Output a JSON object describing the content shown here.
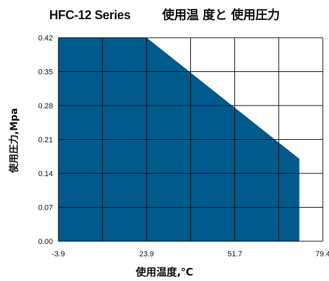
{
  "chart_data": {
    "type": "area",
    "title_left": "HFC-12 Series",
    "title_right": "使用温 度と 使用圧力",
    "xlabel": "使用温度,℃",
    "ylabel": "使用圧力,Mpa",
    "x_ticks": [
      "-3.9",
      "23.9",
      "51.7",
      "79.4"
    ],
    "y_ticks": [
      "0.00",
      "0.07",
      "0.14",
      "0.21",
      "0.28",
      "0.35",
      "0.42"
    ],
    "xlim": [
      -3.9,
      79.4
    ],
    "ylim": [
      0,
      0.42
    ],
    "grid": true,
    "fill_color": "#005a8c",
    "series": [
      {
        "x": [
          -3.9,
          23.9,
          72.0
        ],
        "y": [
          0.42,
          0.42,
          0.17
        ]
      }
    ]
  }
}
